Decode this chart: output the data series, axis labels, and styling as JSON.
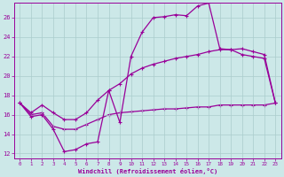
{
  "xlabel": "Windchill (Refroidissement éolien,°C)",
  "background_color": "#cce8e8",
  "grid_color": "#aacccc",
  "line_color": "#990099",
  "xlim": [
    -0.5,
    23.5
  ],
  "ylim": [
    11.5,
    27.5
  ],
  "yticks": [
    12,
    14,
    16,
    18,
    20,
    22,
    24,
    26
  ],
  "xticks": [
    0,
    1,
    2,
    3,
    4,
    5,
    6,
    7,
    8,
    9,
    10,
    11,
    12,
    13,
    14,
    15,
    16,
    17,
    18,
    19,
    20,
    21,
    22,
    23
  ],
  "series1_x": [
    0,
    1,
    2,
    3,
    4,
    5,
    6,
    7,
    8,
    9,
    10,
    11,
    12,
    13,
    14,
    15,
    16,
    17,
    18,
    19,
    20,
    21,
    22,
    23
  ],
  "series1_y": [
    17.2,
    15.8,
    16.0,
    14.5,
    12.2,
    12.4,
    13.0,
    13.2,
    18.5,
    15.2,
    22.0,
    24.5,
    26.0,
    26.1,
    26.3,
    26.2,
    27.2,
    27.5,
    22.8,
    22.7,
    22.2,
    22.0,
    21.8,
    17.2
  ],
  "series2_x": [
    0,
    1,
    2,
    3,
    4,
    5,
    6,
    7,
    8,
    9,
    10,
    11,
    12,
    13,
    14,
    15,
    16,
    17,
    18,
    19,
    20,
    21,
    22,
    23
  ],
  "series2_y": [
    17.2,
    16.2,
    17.0,
    16.2,
    15.5,
    15.5,
    16.2,
    17.5,
    18.5,
    19.2,
    20.2,
    20.8,
    21.2,
    21.5,
    21.8,
    22.0,
    22.2,
    22.5,
    22.7,
    22.7,
    22.8,
    22.5,
    22.2,
    17.2
  ],
  "series3_x": [
    0,
    1,
    2,
    3,
    4,
    5,
    6,
    7,
    8,
    9,
    10,
    11,
    12,
    13,
    14,
    15,
    16,
    17,
    18,
    19,
    20,
    21,
    22,
    23
  ],
  "series3_y": [
    17.2,
    16.0,
    16.2,
    14.8,
    14.5,
    14.5,
    15.0,
    15.5,
    16.0,
    16.2,
    16.3,
    16.4,
    16.5,
    16.6,
    16.6,
    16.7,
    16.8,
    16.8,
    17.0,
    17.0,
    17.0,
    17.0,
    17.0,
    17.2
  ]
}
